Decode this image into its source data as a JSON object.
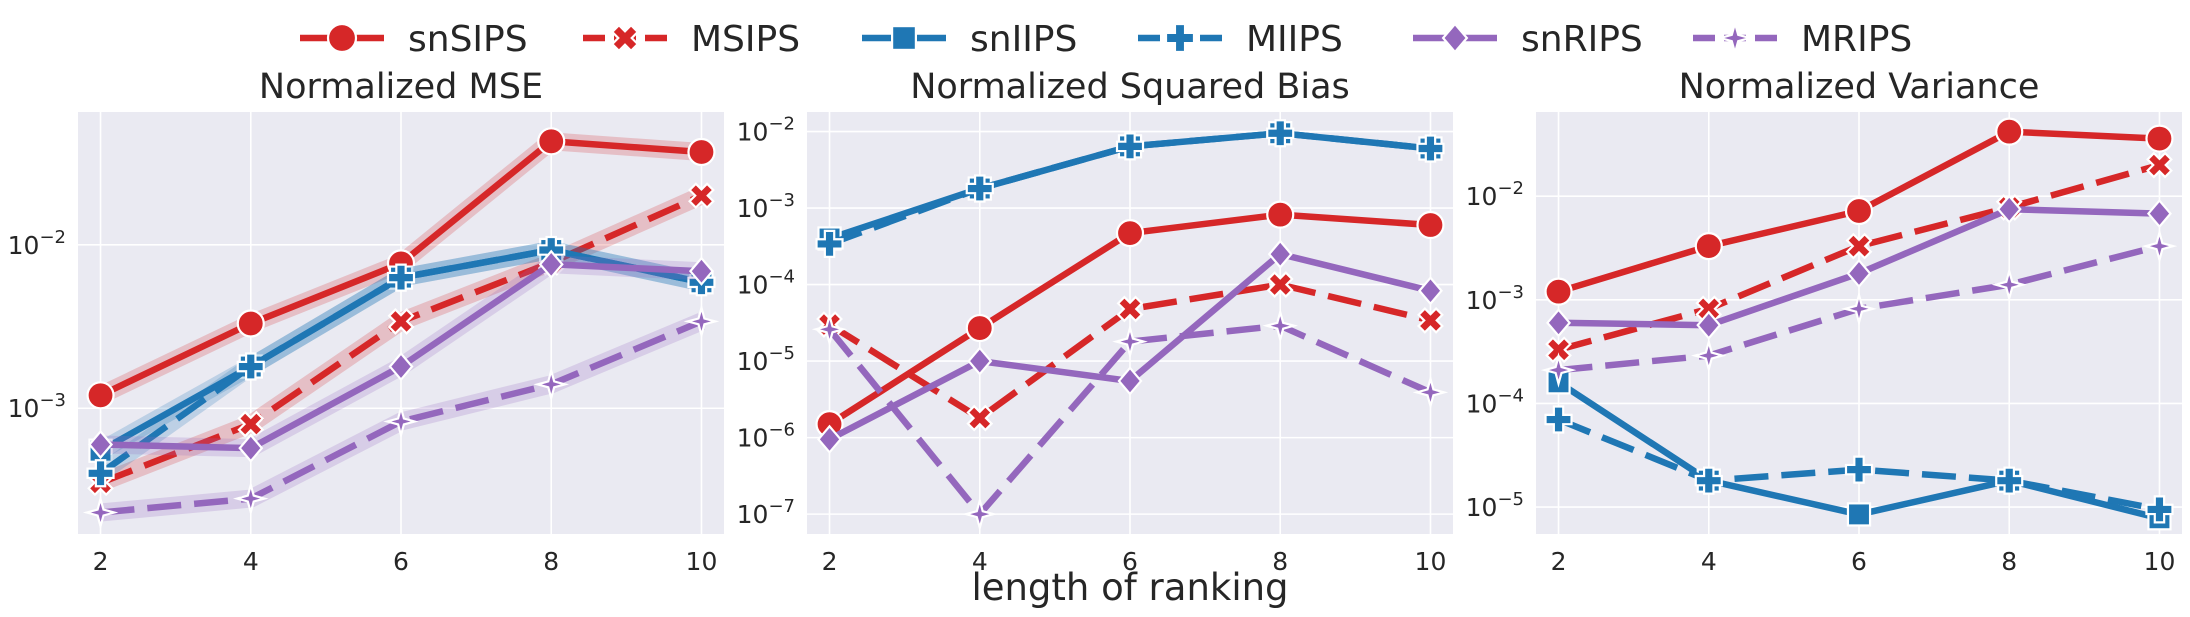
{
  "legend": [
    {
      "name": "snSIPS",
      "color": "#d62728",
      "dash": "solid",
      "marker": "circle"
    },
    {
      "name": "MSIPS",
      "color": "#d62728",
      "dash": "dashed",
      "marker": "x"
    },
    {
      "name": "snIIPS",
      "color": "#1f77b4",
      "dash": "solid",
      "marker": "square"
    },
    {
      "name": "MIIPS",
      "color": "#1f77b4",
      "dash": "dashed",
      "marker": "plus"
    },
    {
      "name": "snRIPS",
      "color": "#9467bd",
      "dash": "solid",
      "marker": "diamond"
    },
    {
      "name": "MRIPS",
      "color": "#9467bd",
      "dash": "dashed",
      "marker": "star"
    }
  ],
  "shared_xlabel": "length of ranking",
  "chart_data": [
    {
      "type": "line",
      "title": "Normalized MSE",
      "xlabel": "length of ranking",
      "ylabel": "",
      "yscale": "log",
      "x": [
        2,
        4,
        6,
        8,
        10
      ],
      "xticks": [
        "2",
        "4",
        "6",
        "8",
        "10"
      ],
      "ylim": [
        0.00017,
        0.065
      ],
      "yticks": [
        {
          "value": 0.001,
          "exp": "−3"
        },
        {
          "value": 0.01,
          "exp": "−2"
        }
      ],
      "series": [
        {
          "name": "snSIPS",
          "values": [
            0.0012,
            0.0033,
            0.0077,
            0.043,
            0.037
          ]
        },
        {
          "name": "MSIPS",
          "values": [
            0.00035,
            0.0008,
            0.0034,
            0.0078,
            0.02
          ]
        },
        {
          "name": "snIIPS",
          "values": [
            0.00055,
            0.0018,
            0.0063,
            0.0093,
            0.0059
          ]
        },
        {
          "name": "MIIPS",
          "values": [
            0.0004,
            0.0018,
            0.0063,
            0.0093,
            0.0059
          ]
        },
        {
          "name": "snRIPS",
          "values": [
            0.0006,
            0.00057,
            0.0018,
            0.0076,
            0.0069
          ]
        },
        {
          "name": "MRIPS",
          "values": [
            0.00023,
            0.00028,
            0.00083,
            0.0014,
            0.0034
          ]
        }
      ]
    },
    {
      "type": "line",
      "title": "Normalized Squared Bias",
      "xlabel": "length of ranking",
      "ylabel": "",
      "yscale": "log",
      "x": [
        2,
        4,
        6,
        8,
        10
      ],
      "xticks": [
        "2",
        "4",
        "6",
        "8",
        "10"
      ],
      "ylim": [
        5.5e-08,
        0.018
      ],
      "yticks": [
        {
          "value": 1e-07,
          "exp": "−7"
        },
        {
          "value": 1e-06,
          "exp": "−6"
        },
        {
          "value": 1e-05,
          "exp": "−5"
        },
        {
          "value": 0.0001,
          "exp": "−4"
        },
        {
          "value": 0.001,
          "exp": "−3"
        },
        {
          "value": 0.01,
          "exp": "−2"
        }
      ],
      "series": [
        {
          "name": "snSIPS",
          "values": [
            1.5e-06,
            2.7e-05,
            0.00047,
            0.00082,
            0.0006
          ]
        },
        {
          "name": "MSIPS",
          "values": [
            3e-05,
            1.8e-06,
            4.8e-05,
            0.0001,
            3.4e-05
          ]
        },
        {
          "name": "snIIPS",
          "values": [
            0.0004,
            0.0018,
            0.0064,
            0.0095,
            0.006
          ]
        },
        {
          "name": "MIIPS",
          "values": [
            0.00034,
            0.0018,
            0.0064,
            0.0095,
            0.006
          ]
        },
        {
          "name": "snRIPS",
          "values": [
            9.5e-07,
            1e-05,
            5.5e-06,
            0.00025,
            8.3e-05
          ]
        },
        {
          "name": "MRIPS",
          "values": [
            2.6e-05,
            1e-07,
            1.8e-05,
            2.9e-05,
            3.9e-06
          ]
        }
      ]
    },
    {
      "type": "line",
      "title": "Normalized Variance",
      "xlabel": "length of ranking",
      "ylabel": "",
      "yscale": "log",
      "x": [
        2,
        4,
        6,
        8,
        10
      ],
      "xticks": [
        "2",
        "4",
        "6",
        "8",
        "10"
      ],
      "ylim": [
        5.5e-06,
        0.065
      ],
      "yticks": [
        {
          "value": 1e-05,
          "exp": "−5"
        },
        {
          "value": 0.0001,
          "exp": "−4"
        },
        {
          "value": 0.001,
          "exp": "−3"
        },
        {
          "value": 0.01,
          "exp": "−2"
        }
      ],
      "series": [
        {
          "name": "snSIPS",
          "values": [
            0.0012,
            0.0033,
            0.0072,
            0.042,
            0.036
          ]
        },
        {
          "name": "MSIPS",
          "values": [
            0.00033,
            0.00082,
            0.0033,
            0.0078,
            0.02
          ]
        },
        {
          "name": "snIIPS",
          "values": [
            0.00016,
            1.8e-05,
            8.5e-06,
            1.8e-05,
            7.8e-06
          ]
        },
        {
          "name": "MIIPS",
          "values": [
            7e-05,
            1.8e-05,
            2.3e-05,
            1.8e-05,
            9.5e-06
          ]
        },
        {
          "name": "snRIPS",
          "values": [
            0.0006,
            0.00057,
            0.0018,
            0.0075,
            0.0068
          ]
        },
        {
          "name": "MRIPS",
          "values": [
            0.00021,
            0.00029,
            0.00082,
            0.0014,
            0.0033
          ]
        }
      ]
    }
  ]
}
